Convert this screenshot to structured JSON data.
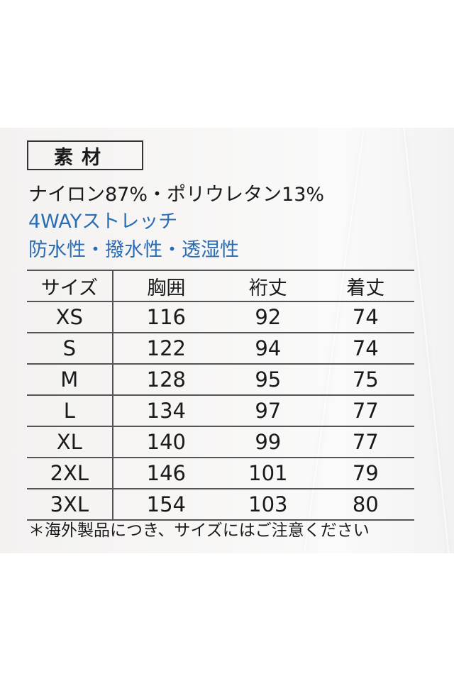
{
  "material": {
    "label": "素材",
    "composition": "ナイロン87%・ポリウレタン13%",
    "features": [
      "4WAYストレッチ",
      "防水性・撥水性・透湿性"
    ],
    "accent_color": "#2a6cb4"
  },
  "size_table": {
    "headers": [
      "サイズ",
      "胸囲",
      "裄丈",
      "着丈"
    ],
    "rows": [
      [
        "XS",
        "116",
        "92",
        "74"
      ],
      [
        "S",
        "122",
        "94",
        "74"
      ],
      [
        "M",
        "128",
        "95",
        "75"
      ],
      [
        "L",
        "134",
        "97",
        "77"
      ],
      [
        "XL",
        "140",
        "99",
        "77"
      ],
      [
        "2XL",
        "146",
        "101",
        "79"
      ],
      [
        "3XL",
        "154",
        "103",
        "80"
      ]
    ]
  },
  "note": "＊海外製品につき、サイズにはご注意ください"
}
